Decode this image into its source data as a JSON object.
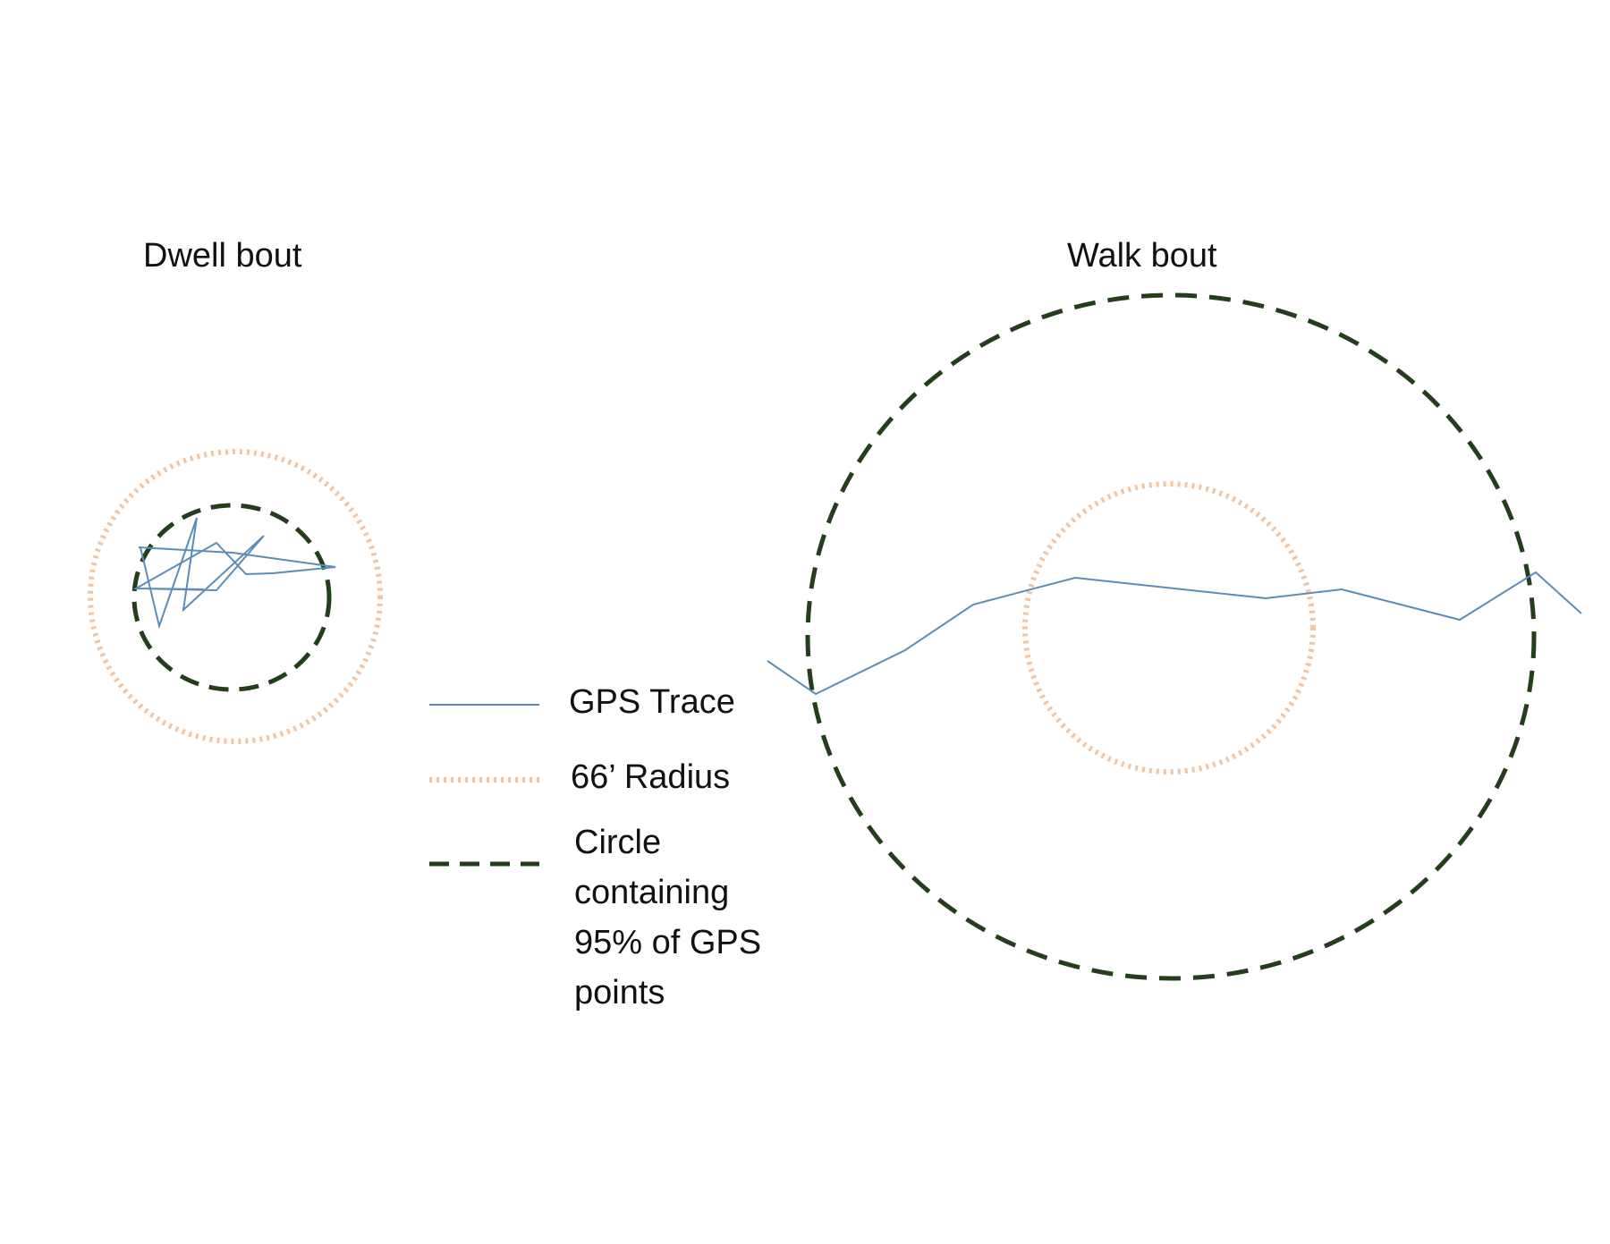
{
  "panels": {
    "dwell": {
      "title": "Dwell bout"
    },
    "walk": {
      "title": "Walk bout"
    }
  },
  "legend": {
    "gps_trace": "GPS Trace",
    "radius": "66’ Radius",
    "circle": "Circle containing 95% of GPS points"
  },
  "colors": {
    "gps_trace": "#5b8db8",
    "radius": "#f2c4a0",
    "circle95": "#233d1d",
    "text": "#111111"
  }
}
